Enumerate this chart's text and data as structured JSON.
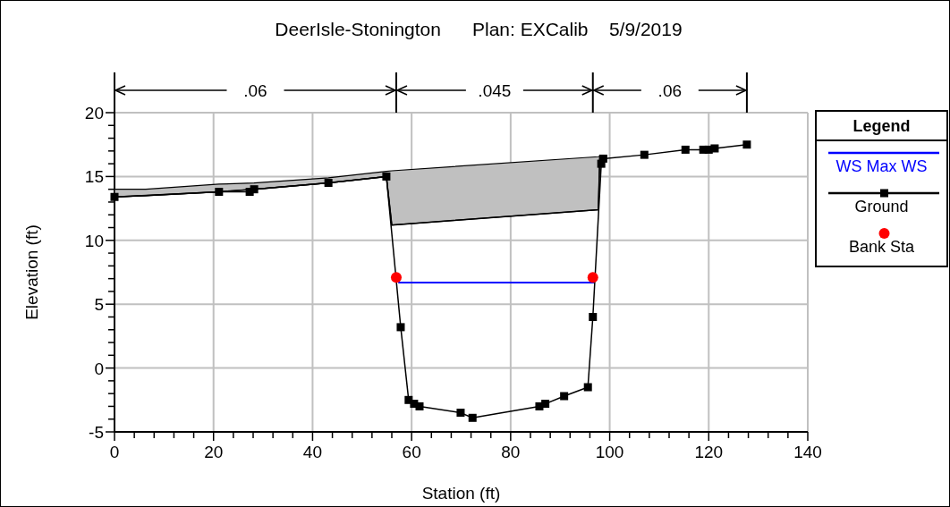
{
  "chart_data": {
    "type": "line",
    "title": "DeerIsle-Stonington      Plan: EXCalib    5/9/2019",
    "xlabel": "Station (ft)",
    "ylabel": "Elevation (ft)",
    "legend_title": "Legend",
    "legend": "right",
    "grid": true,
    "annotations": [
      ".06",
      ".045",
      ".06"
    ],
    "xlim": [
      0,
      140
    ],
    "ylim": [
      -5,
      20
    ],
    "xticks": [
      0,
      {
        "value": 4,
        "label": null
      },
      {
        "value": 8,
        "label": null
      },
      {
        "value": 12,
        "label": null
      },
      {
        "value": 16,
        "label": null
      },
      20,
      {
        "value": 24,
        "label": null
      },
      {
        "value": 28,
        "label": null
      },
      {
        "value": 32,
        "label": null
      },
      {
        "value": 36,
        "label": null
      },
      40,
      {
        "value": 44,
        "label": null
      },
      {
        "value": 48,
        "label": null
      },
      {
        "value": 52,
        "label": null
      },
      {
        "value": 56,
        "label": null
      },
      60,
      {
        "value": 64,
        "label": null
      },
      {
        "value": 68,
        "label": null
      },
      {
        "value": 72,
        "label": null
      },
      {
        "value": 76,
        "label": null
      },
      80,
      {
        "value": 84,
        "label": null
      },
      {
        "value": 88,
        "label": null
      },
      {
        "value": 92,
        "label": null
      },
      {
        "value": 96,
        "label": null
      },
      100,
      {
        "value": 104,
        "label": null
      },
      {
        "value": 108,
        "label": null
      },
      {
        "value": 112,
        "label": null
      },
      {
        "value": 116,
        "label": null
      },
      120,
      {
        "value": 124,
        "label": null
      },
      {
        "value": 128,
        "label": null
      },
      {
        "value": 132,
        "label": null
      },
      {
        "value": 136,
        "label": null
      },
      140
    ],
    "yticks": [
      -5,
      {
        "value": -4,
        "label": null
      },
      {
        "value": -3,
        "label": null
      },
      {
        "value": -2,
        "label": null
      },
      {
        "value": -1,
        "label": null
      },
      0,
      {
        "value": 1,
        "label": null
      },
      {
        "value": 2,
        "label": null
      },
      {
        "value": 3,
        "label": null
      },
      {
        "value": 4,
        "label": null
      },
      5,
      {
        "value": 6,
        "label": null
      },
      {
        "value": 7,
        "label": null
      },
      {
        "value": 8,
        "label": null
      },
      {
        "value": 9,
        "label": null
      },
      10,
      {
        "value": 11,
        "label": null
      },
      {
        "value": 12,
        "label": null
      },
      {
        "value": 13,
        "label": null
      },
      {
        "value": 14,
        "label": null
      },
      15,
      {
        "value": 16,
        "label": null
      },
      {
        "value": 17,
        "label": null
      },
      {
        "value": 18,
        "label": null
      },
      {
        "value": 19,
        "label": null
      },
      20
    ],
    "series": [
      {
        "type": "area",
        "color": "#c0c0c0",
        "x": [
          0,
          6.3,
          21.1,
          28.2,
          43.2,
          54.9,
          56.0,
          97.7,
          98.0
        ],
        "values": [
          14.0,
          14.0,
          14.4,
          14.5,
          14.9,
          15.4,
          15.45,
          16.55,
          16.6
        ]
      },
      {
        "type": "line",
        "color": "#000000",
        "x": [
          0,
          6.3,
          21.1,
          28.2,
          43.2,
          54.9,
          56.0,
          97.7,
          98.0
        ],
        "values": [
          13.4,
          13.5,
          13.8,
          14.0,
          14.5,
          15.0,
          11.2,
          12.4,
          16.5
        ]
      },
      {
        "name": "WS Max WS",
        "color": "#0000ff",
        "marker": "none",
        "x": [
          57.3,
          96.9
        ],
        "values": [
          6.7,
          6.7
        ]
      },
      {
        "type": "line",
        "name": "Ground",
        "color": "#000000",
        "marker": "square",
        "x": [
          0,
          21.1,
          27.3,
          28.2,
          43.2,
          54.9,
          57.8,
          59.4,
          60.5,
          61.6,
          69.9,
          72.3,
          85.8,
          87.0,
          90.8,
          95.6,
          96.6,
          98.3,
          98.7,
          107.0,
          115.3,
          118.9,
          120.0,
          121.2,
          127.7
        ],
        "values": [
          13.4,
          13.8,
          13.8,
          14.0,
          14.5,
          15.0,
          3.2,
          -2.5,
          -2.8,
          -3.0,
          -3.5,
          -3.9,
          -3.0,
          -2.8,
          -2.2,
          -1.5,
          4.0,
          16.0,
          16.4,
          16.7,
          17.1,
          17.1,
          17.1,
          17.2,
          17.5
        ]
      },
      {
        "type": "scatter",
        "name": "Bank Sta",
        "color": "#ff0000",
        "marker": "circle",
        "x": [
          56.9,
          96.6
        ],
        "values": [
          7.1,
          7.1
        ]
      }
    ]
  }
}
